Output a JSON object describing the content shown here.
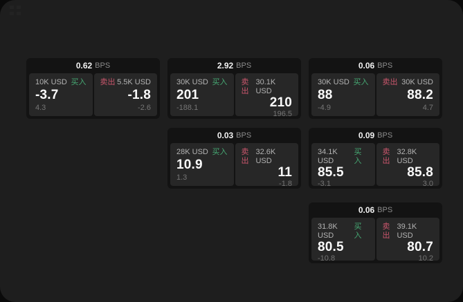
{
  "window": {
    "app_icon": "grid-logo-icon"
  },
  "labels": {
    "bps_unit": "BPS",
    "buy": "买入",
    "sell": "卖出"
  },
  "colors": {
    "buy_green": "#46a873",
    "sell_red": "#c9566c",
    "window_bg": "#1e1e1e",
    "card_bg": "#131313",
    "panel_bg": "#272727"
  },
  "cards": [
    {
      "bps": "0.62",
      "buy": {
        "amount": "10K USD",
        "price": "-3.7",
        "delta": "4.3"
      },
      "sell": {
        "amount": "5.5K USD",
        "price": "-1.8",
        "delta": "-2.6"
      }
    },
    {
      "bps": "2.92",
      "buy": {
        "amount": "30K USD",
        "price": "201",
        "delta": "-188.1"
      },
      "sell": {
        "amount": "30.1K USD",
        "price": "210",
        "delta": "196.5"
      }
    },
    {
      "bps": "0.06",
      "buy": {
        "amount": "30K USD",
        "price": "88",
        "delta": "-4.9"
      },
      "sell": {
        "amount": "30K USD",
        "price": "88.2",
        "delta": "4.7"
      }
    },
    {
      "bps": "0.03",
      "buy": {
        "amount": "28K USD",
        "price": "10.9",
        "delta": "1.3"
      },
      "sell": {
        "amount": "32.6K USD",
        "price": "11",
        "delta": "-1.8"
      }
    },
    {
      "bps": "0.09",
      "buy": {
        "amount": "34.1K USD",
        "price": "85.5",
        "delta": "-3.1"
      },
      "sell": {
        "amount": "32.8K USD",
        "price": "85.8",
        "delta": "3.0"
      }
    },
    {
      "bps": "0.06",
      "buy": {
        "amount": "31.8K USD",
        "price": "80.5",
        "delta": "-10.8"
      },
      "sell": {
        "amount": "39.1K USD",
        "price": "80.7",
        "delta": "10.2"
      }
    }
  ]
}
